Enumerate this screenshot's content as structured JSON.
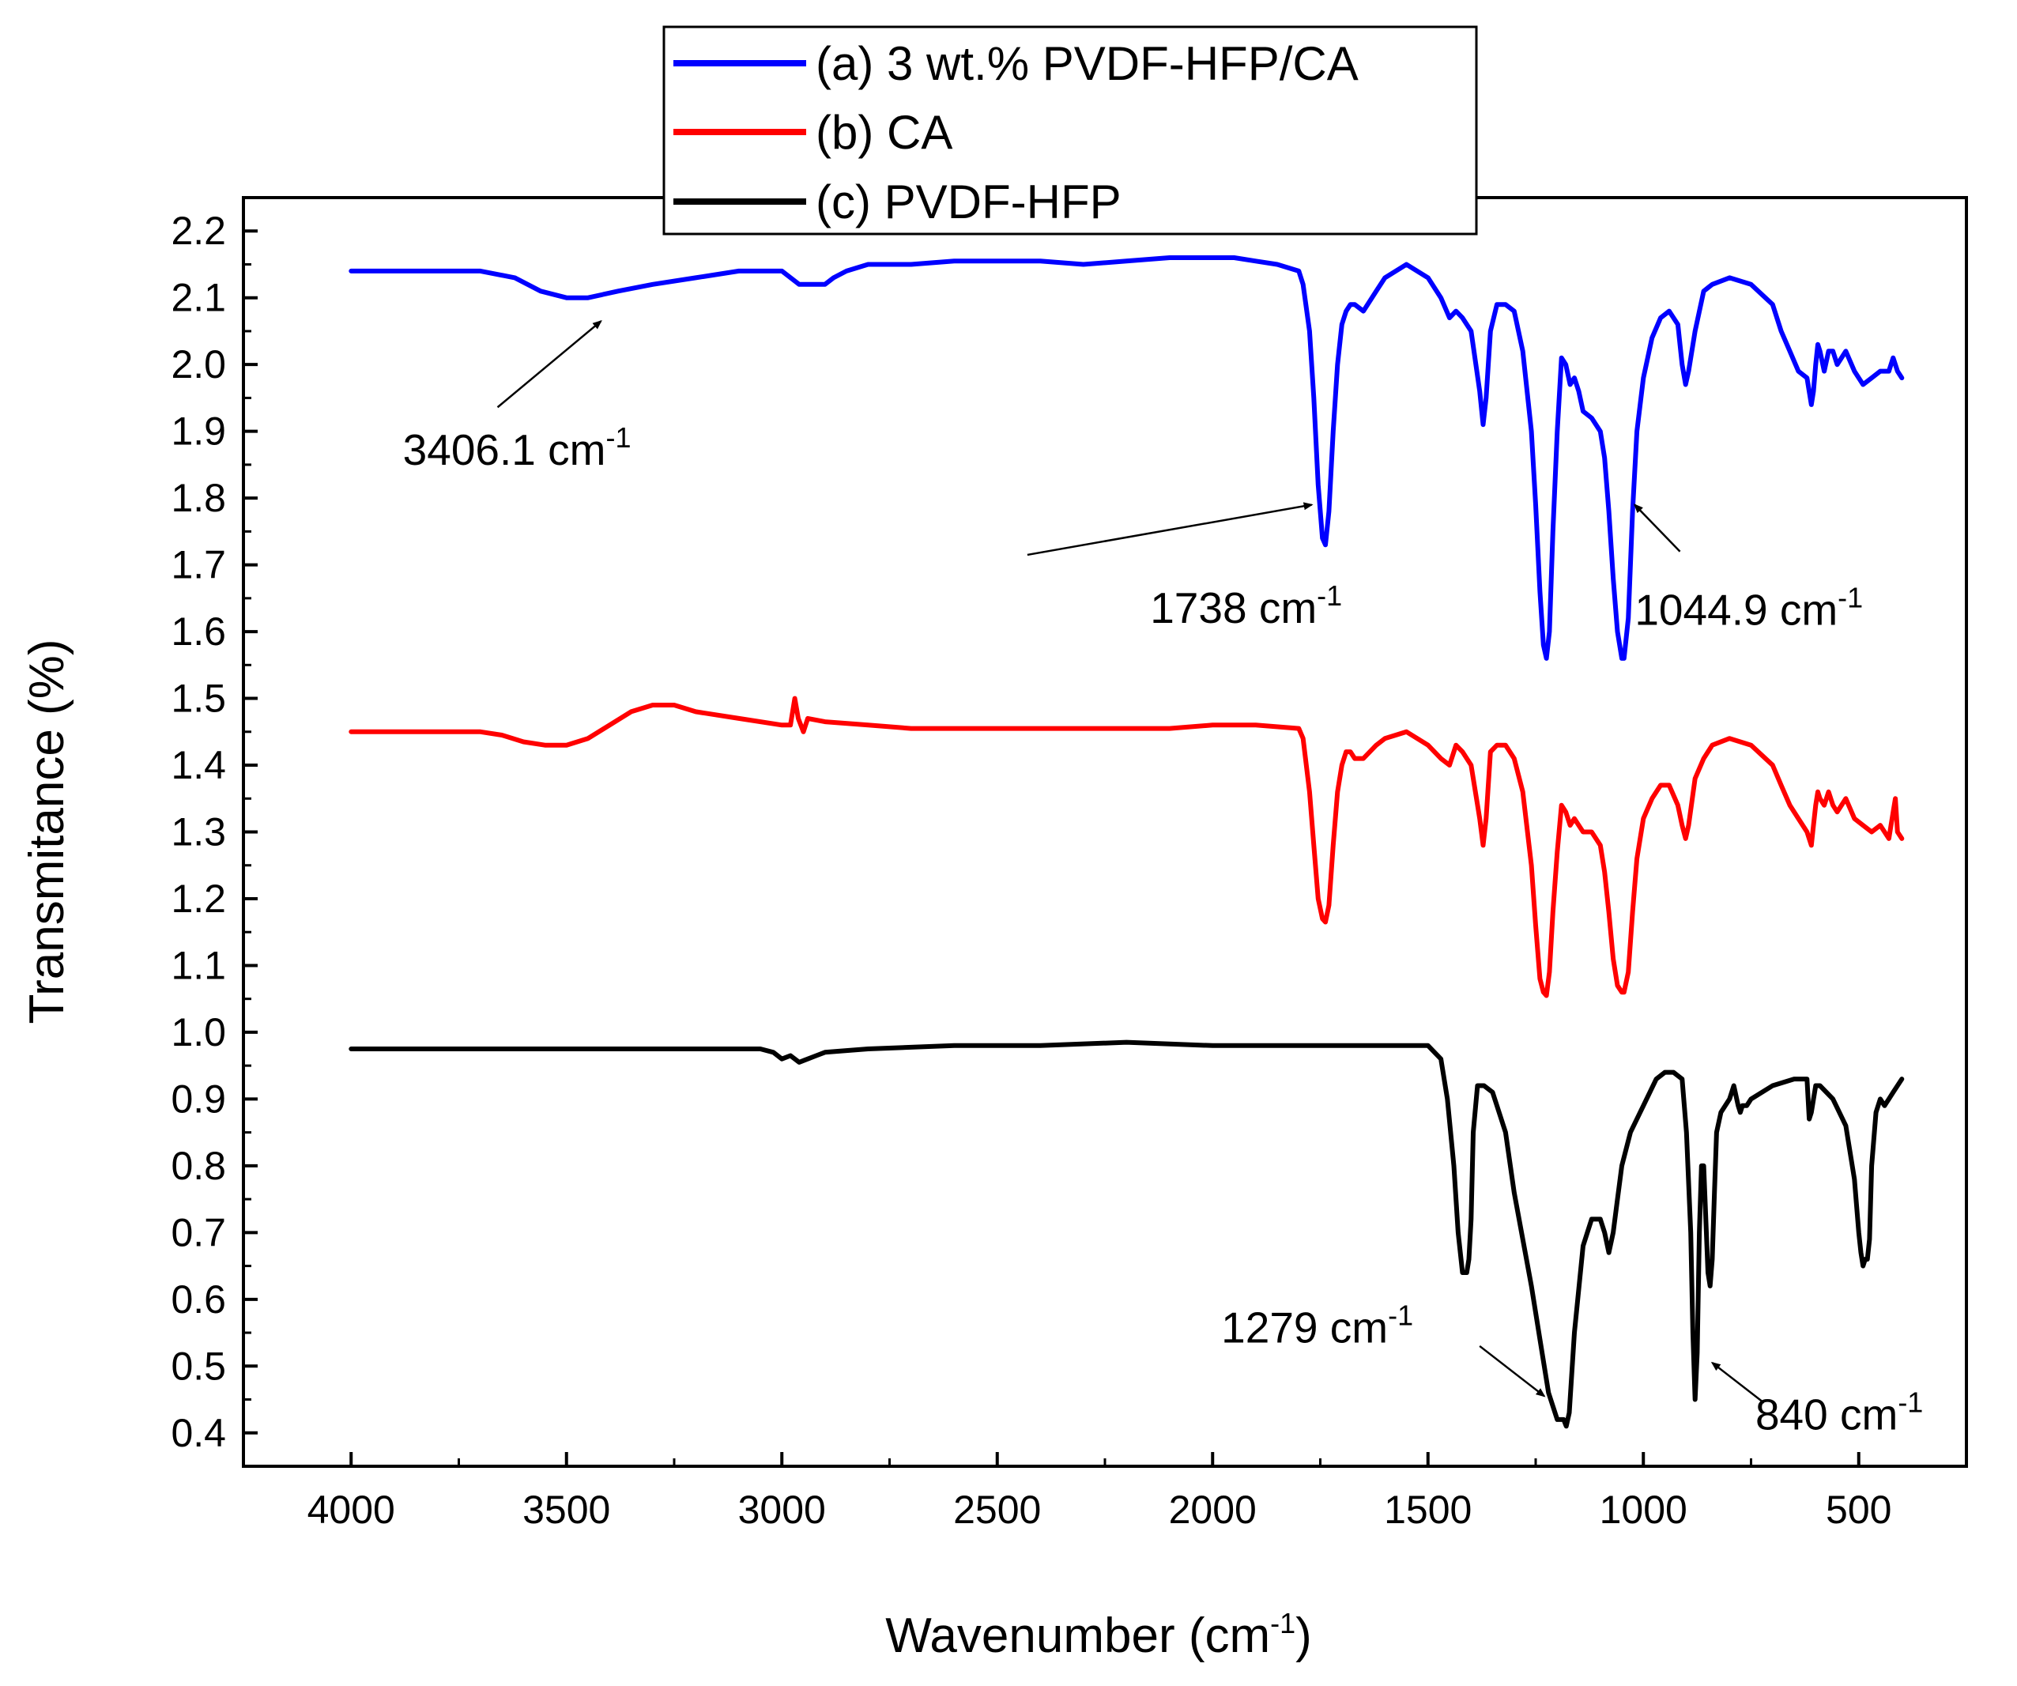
{
  "chart_data": {
    "type": "line",
    "title": "",
    "xlabel": "Wavenumber (cm",
    "xlabel_sup": "-1",
    "xlabel_tail": ")",
    "ylabel": "Transmitance (%)",
    "xlim": [
      4250,
      250
    ],
    "ylim": [
      0.35,
      2.25
    ],
    "xticks": [
      {
        "value": 4000,
        "label": "4000"
      },
      {
        "value": 3500,
        "label": "3500"
      },
      {
        "value": 3000,
        "label": "3000"
      },
      {
        "value": 2500,
        "label": "2500"
      },
      {
        "value": 2000,
        "label": "2000"
      },
      {
        "value": 1500,
        "label": "1500"
      },
      {
        "value": 1000,
        "label": "1000"
      },
      {
        "value": 500,
        "label": "500"
      }
    ],
    "yticks": [
      {
        "value": 0.4,
        "label": "0.4"
      },
      {
        "value": 0.5,
        "label": "0.5"
      },
      {
        "value": 0.6,
        "label": "0.6"
      },
      {
        "value": 0.7,
        "label": "0.7"
      },
      {
        "value": 0.8,
        "label": "0.8"
      },
      {
        "value": 0.9,
        "label": "0.9"
      },
      {
        "value": 1.0,
        "label": "1.0"
      },
      {
        "value": 1.1,
        "label": "1.1"
      },
      {
        "value": 1.2,
        "label": "1.2"
      },
      {
        "value": 1.3,
        "label": "1.3"
      },
      {
        "value": 1.4,
        "label": "1.4"
      },
      {
        "value": 1.5,
        "label": "1.5"
      },
      {
        "value": 1.6,
        "label": "1.6"
      },
      {
        "value": 1.7,
        "label": "1.7"
      },
      {
        "value": 1.8,
        "label": "1.8"
      },
      {
        "value": 1.9,
        "label": "1.9"
      },
      {
        "value": 2.0,
        "label": "2.0"
      },
      {
        "value": 2.1,
        "label": "2.1"
      },
      {
        "value": 2.2,
        "label": "2.2"
      }
    ],
    "legend_position": "top-center",
    "series": [
      {
        "name": "(a) 3 wt.% PVDF-HFP/CA",
        "color": "#0000ff",
        "x": [
          4000,
          3850,
          3700,
          3620,
          3560,
          3500,
          3450,
          3380,
          3300,
          3200,
          3100,
          3000,
          2960,
          2940,
          2900,
          2880,
          2850,
          2800,
          2700,
          2600,
          2500,
          2400,
          2300,
          2200,
          2100,
          2000,
          1950,
          1900,
          1850,
          1800,
          1790,
          1775,
          1765,
          1755,
          1745,
          1738,
          1730,
          1720,
          1710,
          1700,
          1690,
          1680,
          1670,
          1650,
          1620,
          1600,
          1550,
          1500,
          1470,
          1450,
          1435,
          1420,
          1400,
          1380,
          1372,
          1365,
          1355,
          1340,
          1320,
          1300,
          1280,
          1260,
          1250,
          1240,
          1232,
          1225,
          1218,
          1210,
          1200,
          1190,
          1180,
          1170,
          1160,
          1150,
          1140,
          1120,
          1100,
          1090,
          1080,
          1070,
          1060,
          1050,
          1044.9,
          1035,
          1025,
          1015,
          1000,
          980,
          960,
          940,
          920,
          910,
          902,
          895,
          880,
          860,
          840,
          800,
          750,
          700,
          680,
          660,
          640,
          620,
          610,
          605,
          600,
          595,
          590,
          580,
          570,
          560,
          550,
          530,
          510,
          490,
          470,
          450,
          430,
          420,
          410,
          400
        ],
        "values": [
          2.14,
          2.14,
          2.14,
          2.13,
          2.11,
          2.1,
          2.1,
          2.11,
          2.12,
          2.13,
          2.14,
          2.14,
          2.12,
          2.12,
          2.12,
          2.13,
          2.14,
          2.15,
          2.15,
          2.155,
          2.155,
          2.155,
          2.15,
          2.155,
          2.16,
          2.16,
          2.16,
          2.155,
          2.15,
          2.14,
          2.12,
          2.05,
          1.95,
          1.82,
          1.74,
          1.73,
          1.78,
          1.9,
          2.0,
          2.06,
          2.08,
          2.09,
          2.09,
          2.08,
          2.11,
          2.13,
          2.15,
          2.13,
          2.1,
          2.07,
          2.08,
          2.07,
          2.05,
          1.96,
          1.91,
          1.95,
          2.05,
          2.09,
          2.09,
          2.08,
          2.02,
          1.9,
          1.79,
          1.66,
          1.58,
          1.56,
          1.6,
          1.75,
          1.9,
          2.01,
          2.0,
          1.97,
          1.98,
          1.96,
          1.93,
          1.92,
          1.9,
          1.86,
          1.78,
          1.68,
          1.6,
          1.56,
          1.56,
          1.62,
          1.78,
          1.9,
          1.98,
          2.04,
          2.07,
          2.08,
          2.06,
          2.0,
          1.97,
          1.99,
          2.05,
          2.11,
          2.12,
          2.13,
          2.12,
          2.09,
          2.05,
          2.02,
          1.99,
          1.98,
          1.94,
          1.96,
          2.0,
          2.03,
          2.02,
          1.99,
          2.02,
          2.02,
          2.0,
          2.02,
          1.99,
          1.97,
          1.98,
          1.99,
          1.99,
          2.01,
          1.99,
          1.98
        ]
      },
      {
        "name": "(b) CA",
        "color": "#ff0000",
        "x": [
          4000,
          3800,
          3700,
          3650,
          3600,
          3550,
          3500,
          3450,
          3400,
          3350,
          3300,
          3250,
          3200,
          3100,
          3000,
          2980,
          2970,
          2962,
          2950,
          2940,
          2900,
          2800,
          2700,
          2500,
          2300,
          2100,
          2000,
          1900,
          1800,
          1790,
          1775,
          1765,
          1755,
          1745,
          1738,
          1730,
          1720,
          1710,
          1700,
          1690,
          1680,
          1670,
          1650,
          1620,
          1600,
          1550,
          1500,
          1470,
          1450,
          1435,
          1420,
          1400,
          1380,
          1372,
          1365,
          1355,
          1340,
          1320,
          1300,
          1280,
          1260,
          1250,
          1240,
          1232,
          1225,
          1218,
          1210,
          1200,
          1190,
          1180,
          1170,
          1160,
          1150,
          1140,
          1120,
          1100,
          1090,
          1080,
          1070,
          1060,
          1050,
          1044.9,
          1035,
          1025,
          1015,
          1000,
          980,
          960,
          940,
          920,
          910,
          902,
          895,
          880,
          860,
          840,
          800,
          750,
          700,
          680,
          660,
          640,
          620,
          610,
          605,
          600,
          595,
          590,
          580,
          570,
          560,
          550,
          530,
          510,
          490,
          470,
          450,
          430,
          420,
          415,
          410,
          400
        ],
        "values": [
          1.45,
          1.45,
          1.45,
          1.445,
          1.435,
          1.43,
          1.43,
          1.44,
          1.46,
          1.48,
          1.49,
          1.49,
          1.48,
          1.47,
          1.46,
          1.46,
          1.5,
          1.47,
          1.45,
          1.47,
          1.465,
          1.46,
          1.455,
          1.455,
          1.455,
          1.455,
          1.46,
          1.46,
          1.455,
          1.44,
          1.36,
          1.28,
          1.2,
          1.17,
          1.165,
          1.19,
          1.28,
          1.36,
          1.4,
          1.42,
          1.42,
          1.41,
          1.41,
          1.43,
          1.44,
          1.45,
          1.43,
          1.41,
          1.4,
          1.43,
          1.42,
          1.4,
          1.32,
          1.28,
          1.32,
          1.42,
          1.43,
          1.43,
          1.41,
          1.36,
          1.25,
          1.16,
          1.08,
          1.06,
          1.055,
          1.09,
          1.18,
          1.27,
          1.34,
          1.33,
          1.31,
          1.32,
          1.31,
          1.3,
          1.3,
          1.28,
          1.24,
          1.18,
          1.11,
          1.07,
          1.06,
          1.06,
          1.09,
          1.18,
          1.26,
          1.32,
          1.35,
          1.37,
          1.37,
          1.34,
          1.31,
          1.29,
          1.31,
          1.38,
          1.41,
          1.43,
          1.44,
          1.43,
          1.4,
          1.37,
          1.34,
          1.32,
          1.3,
          1.28,
          1.31,
          1.34,
          1.36,
          1.35,
          1.34,
          1.36,
          1.34,
          1.33,
          1.35,
          1.32,
          1.31,
          1.3,
          1.31,
          1.29,
          1.33,
          1.35,
          1.3,
          1.29
        ]
      },
      {
        "name": "(c) PVDF-HFP",
        "color": "#000000",
        "x": [
          4000,
          3800,
          3600,
          3400,
          3200,
          3050,
          3020,
          3000,
          2980,
          2960,
          2940,
          2920,
          2900,
          2800,
          2600,
          2400,
          2200,
          2000,
          1800,
          1600,
          1500,
          1470,
          1455,
          1440,
          1430,
          1420,
          1410,
          1405,
          1400,
          1395,
          1385,
          1370,
          1350,
          1320,
          1300,
          1280,
          1260,
          1240,
          1220,
          1200,
          1185,
          1179,
          1172,
          1160,
          1140,
          1120,
          1100,
          1090,
          1080,
          1070,
          1060,
          1050,
          1030,
          1000,
          970,
          950,
          930,
          910,
          900,
          890,
          885,
          880,
          875,
          870,
          865,
          860,
          855,
          850,
          845,
          840,
          835,
          830,
          820,
          800,
          790,
          780,
          775,
          770,
          760,
          750,
          700,
          650,
          620,
          615,
          610,
          600,
          590,
          560,
          530,
          510,
          500,
          495,
          490,
          485,
          480,
          475,
          470,
          460,
          450,
          440,
          430,
          420,
          410,
          400
        ],
        "values": [
          0.975,
          0.975,
          0.975,
          0.975,
          0.975,
          0.975,
          0.97,
          0.96,
          0.965,
          0.955,
          0.96,
          0.965,
          0.97,
          0.975,
          0.98,
          0.98,
          0.985,
          0.98,
          0.98,
          0.98,
          0.98,
          0.96,
          0.9,
          0.8,
          0.7,
          0.64,
          0.64,
          0.66,
          0.72,
          0.85,
          0.92,
          0.92,
          0.91,
          0.85,
          0.76,
          0.69,
          0.62,
          0.54,
          0.46,
          0.42,
          0.42,
          0.41,
          0.43,
          0.55,
          0.68,
          0.72,
          0.72,
          0.7,
          0.67,
          0.7,
          0.75,
          0.8,
          0.85,
          0.89,
          0.93,
          0.94,
          0.94,
          0.93,
          0.85,
          0.7,
          0.55,
          0.45,
          0.52,
          0.7,
          0.8,
          0.8,
          0.72,
          0.64,
          0.62,
          0.66,
          0.76,
          0.85,
          0.88,
          0.9,
          0.92,
          0.89,
          0.88,
          0.89,
          0.89,
          0.9,
          0.92,
          0.93,
          0.93,
          0.87,
          0.88,
          0.92,
          0.92,
          0.9,
          0.86,
          0.78,
          0.7,
          0.67,
          0.65,
          0.66,
          0.66,
          0.69,
          0.8,
          0.88,
          0.9,
          0.89,
          0.9,
          0.91,
          0.92,
          0.93
        ]
      }
    ],
    "annotations": [
      {
        "text": "3406.1 cm",
        "sup": "-1",
        "label_x": 3880,
        "label_y": 1.85,
        "arrow_from": [
          3660,
          1.936
        ],
        "arrow_to": [
          3420,
          2.065
        ]
      },
      {
        "text": "1738 cm",
        "sup": "-1",
        "label_x": 2145,
        "label_y": 1.613,
        "arrow_from": [
          2430,
          1.715
        ],
        "arrow_to": [
          1770,
          1.79
        ]
      },
      {
        "text": "1044.9 cm",
        "sup": "-1",
        "label_x": 1020,
        "label_y": 1.61,
        "arrow_from": [
          915,
          1.72
        ],
        "arrow_to": [
          1020,
          1.79
        ]
      },
      {
        "text": "1279 cm",
        "sup": "-1",
        "label_x": 1980,
        "label_y": 0.535,
        "arrow_from": [
          1380,
          0.53
        ],
        "arrow_to": [
          1230,
          0.455
        ]
      },
      {
        "text": "840 cm",
        "sup": "-1",
        "label_x": 740,
        "label_y": 0.405,
        "arrow_from": [
          720,
          0.445
        ],
        "arrow_to": [
          840,
          0.505
        ]
      }
    ]
  }
}
